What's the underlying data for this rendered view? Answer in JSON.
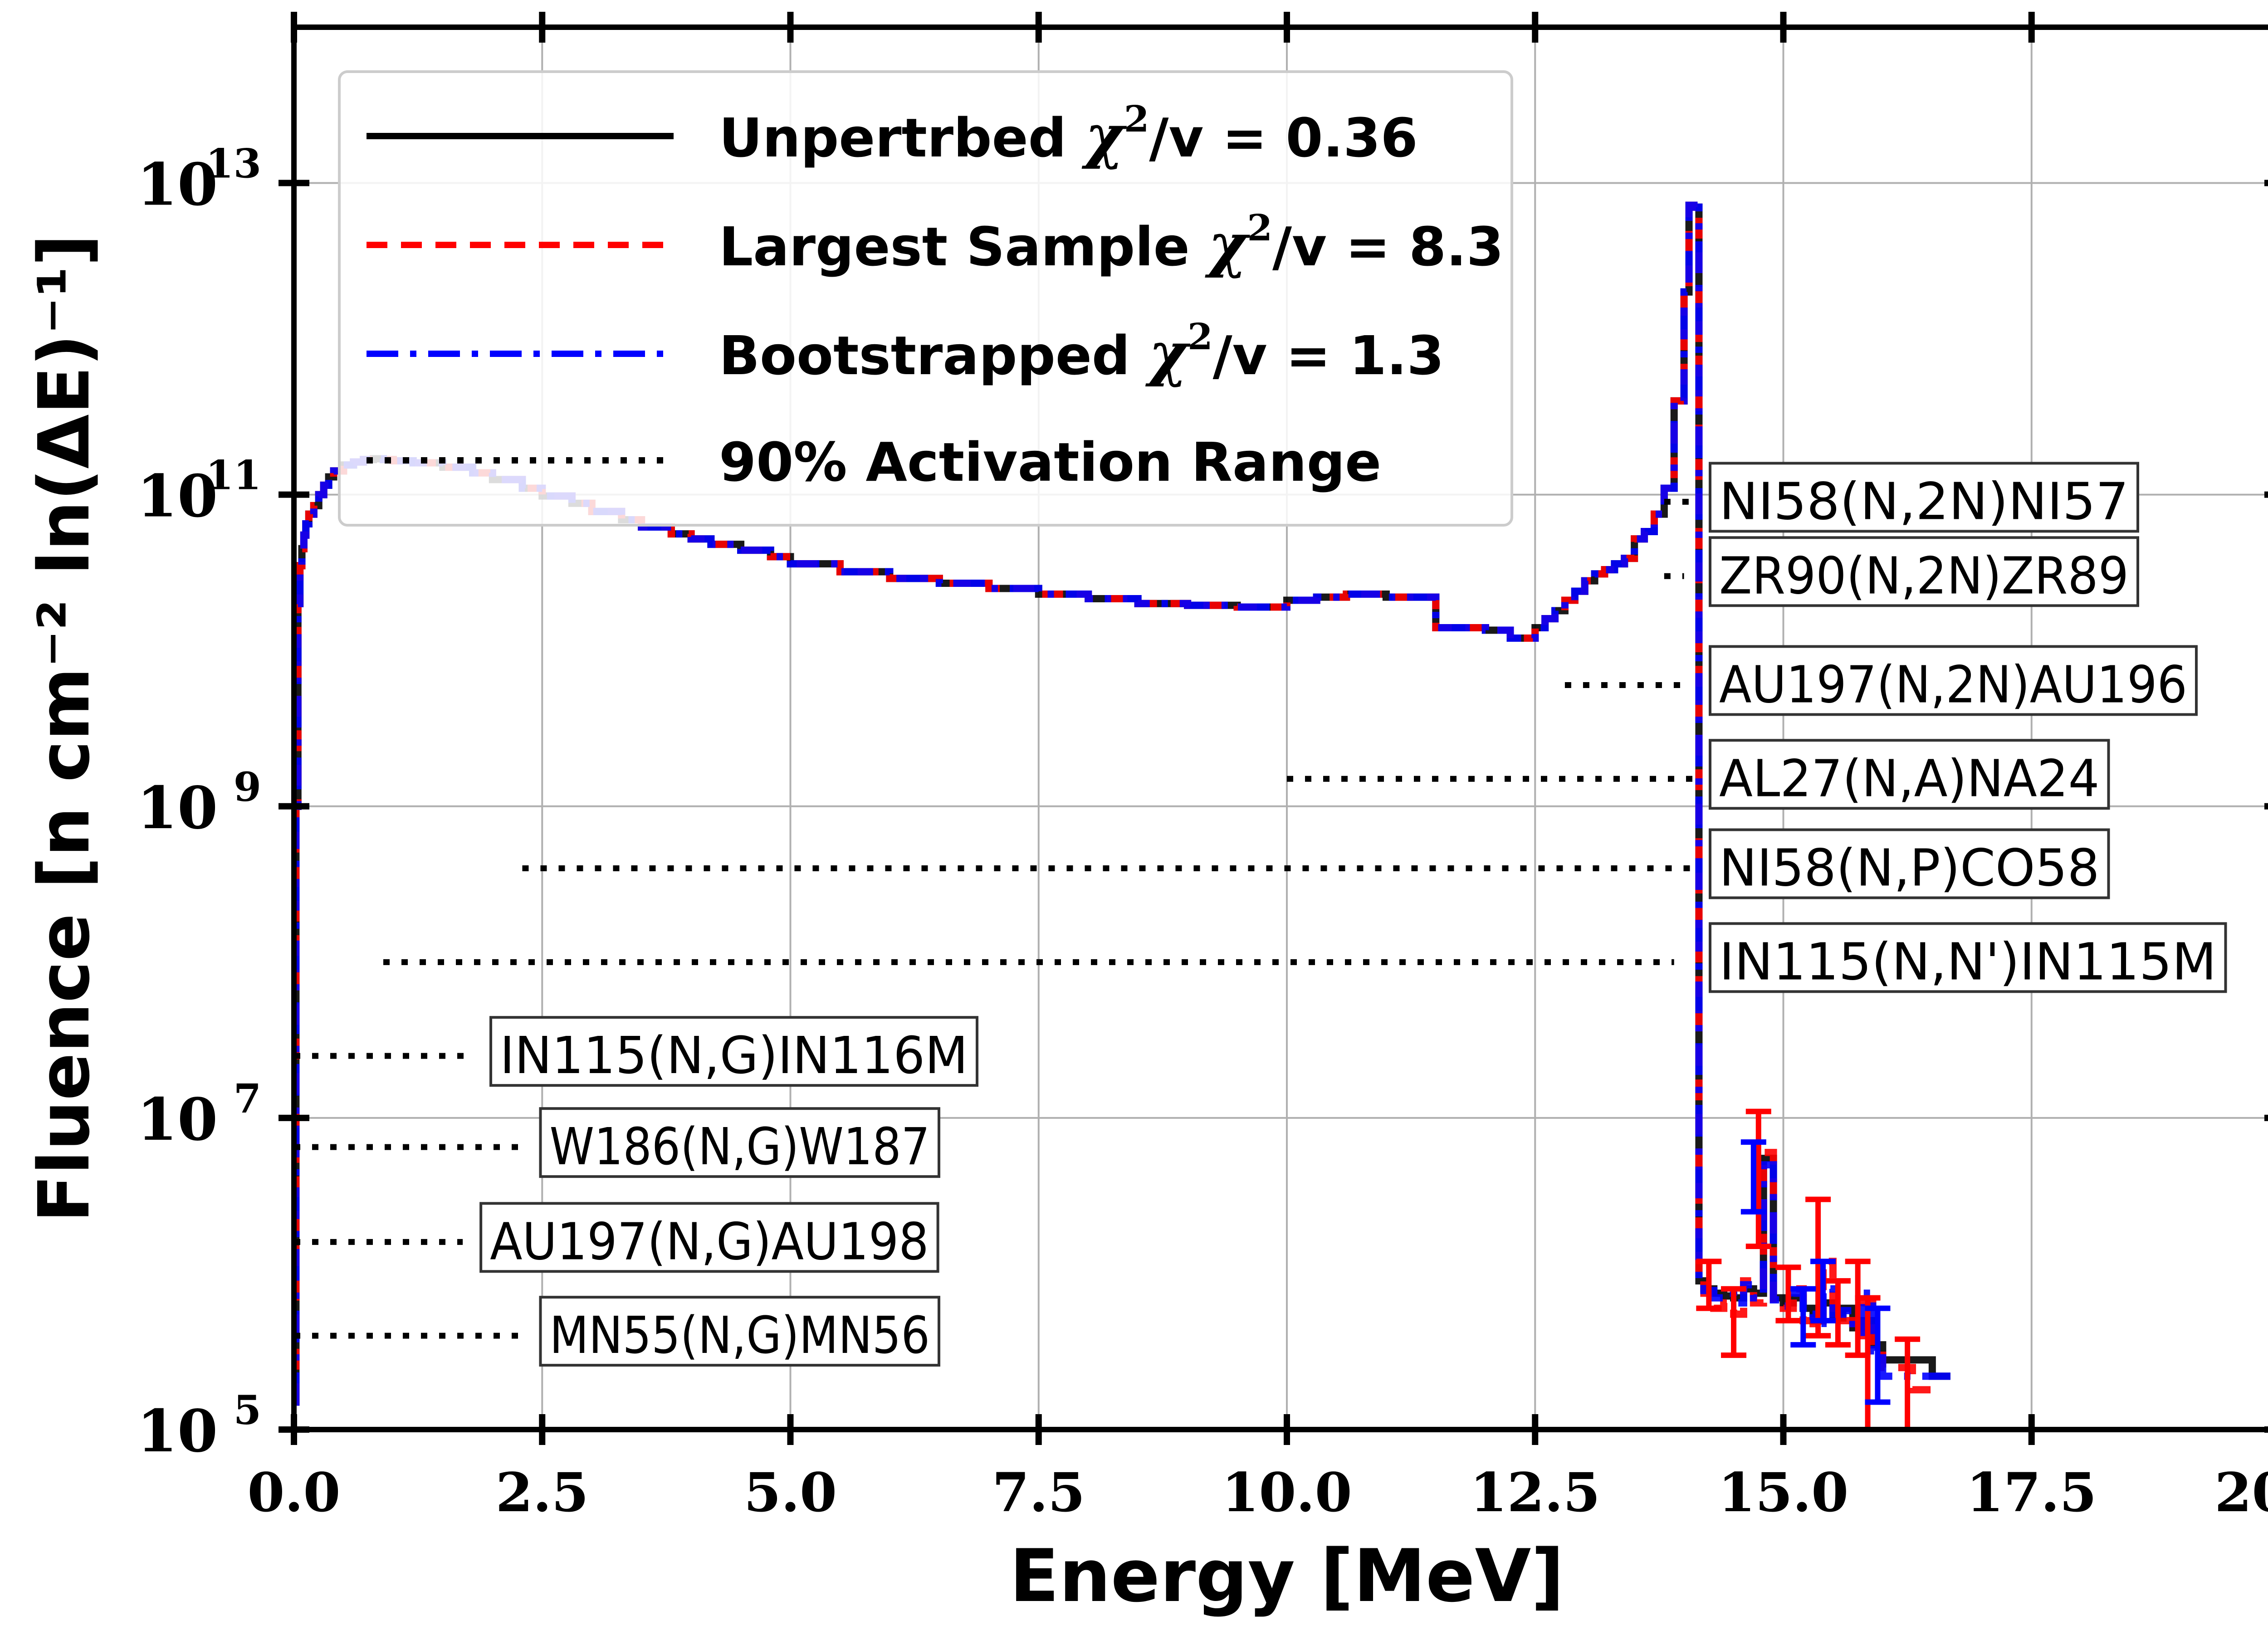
{
  "chart_data": {
    "type": "line",
    "xlabel": "Energy [MeV]",
    "ylabel": "Fluence [n cm⁻² ln(ΔE)⁻¹]",
    "xlim": [
      0.0,
      20.0
    ],
    "ylim_log10": [
      5,
      14
    ],
    "y_scale": "log",
    "grid": true,
    "legend_position": "top-left",
    "x_ticks": [
      "0.0",
      "2.5",
      "5.0",
      "7.5",
      "10.0",
      "12.5",
      "15.0",
      "17.5",
      "20.0"
    ],
    "x_tick_values": [
      0,
      2.5,
      5,
      7.5,
      10,
      12.5,
      15,
      17.5,
      20
    ],
    "y_ticks": [
      {
        "base": "10",
        "exp": "5",
        "value": 100000.0
      },
      {
        "base": "10",
        "exp": "7",
        "value": 10000000.0
      },
      {
        "base": "10",
        "exp": "9",
        "value": 1000000000.0
      },
      {
        "base": "10",
        "exp": "11",
        "value": 100000000000.0
      },
      {
        "base": "10",
        "exp": "13",
        "value": 10000000000000.0
      }
    ],
    "legend": [
      {
        "pre": "Unpertrbed ",
        "chi": "χ",
        "sq": "2",
        "post": "/v = 0.36",
        "color": "#000000",
        "style": "solid"
      },
      {
        "pre": "Largest Sample ",
        "chi": "χ",
        "sq": "2",
        "post": "/v = 8.3",
        "color": "#ff0000",
        "style": "dashed"
      },
      {
        "pre": "Bootstrapped ",
        "chi": "χ",
        "sq": "2",
        "post": "/v = 1.3",
        "color": "#0000ff",
        "style": "dashdot"
      },
      {
        "pre": "90% Activation Range",
        "chi": "",
        "sq": "",
        "post": "",
        "color": "#000000",
        "style": "dotted"
      }
    ],
    "series": [
      {
        "name": "Unpertrbed",
        "color": "#000000",
        "x": [
          0.0,
          0.02,
          0.04,
          0.06,
          0.08,
          0.1,
          0.12,
          0.15,
          0.2,
          0.25,
          0.3,
          0.35,
          0.4,
          0.5,
          0.6,
          0.7,
          0.8,
          0.9,
          1.0,
          1.2,
          1.5,
          1.8,
          2.0,
          2.3,
          2.5,
          2.8,
          3.0,
          3.3,
          3.5,
          3.8,
          4.0,
          4.2,
          4.5,
          4.8,
          5.0,
          5.5,
          6.0,
          6.5,
          7.0,
          7.5,
          8.0,
          8.5,
          9.0,
          9.5,
          10.0,
          10.3,
          10.6,
          11.0,
          11.5,
          12.0,
          12.25,
          12.5,
          12.6,
          12.7,
          12.8,
          12.9,
          13.0,
          13.1,
          13.2,
          13.3,
          13.4,
          13.5,
          13.6,
          13.7,
          13.8,
          13.9,
          14.0,
          14.05,
          14.1,
          14.15,
          14.2,
          14.3,
          14.4,
          14.5,
          14.6,
          14.7,
          14.8,
          14.9,
          15.0,
          15.1,
          15.2,
          15.3,
          15.4,
          15.5,
          15.6,
          15.7,
          15.8,
          15.9,
          16.0,
          16.5
        ],
        "y": [
          150000.0,
          1000000000.0,
          20000000000.0,
          35000000000.0,
          45000000000.0,
          55000000000.0,
          65000000000.0,
          75000000000.0,
          85000000000.0,
          100000000000.0,
          115000000000.0,
          130000000000.0,
          142000000000.0,
          155000000000.0,
          162000000000.0,
          168000000000.0,
          170000000000.0,
          168000000000.0,
          165000000000.0,
          160000000000.0,
          150000000000.0,
          138000000000.0,
          125000000000.0,
          110000000000.0,
          98000000000.0,
          88000000000.0,
          78000000000.0,
          69000000000.0,
          62000000000.0,
          56000000000.0,
          52000000000.0,
          48000000000.0,
          44000000000.0,
          40000000000.0,
          36000000000.0,
          32000000000.0,
          29000000000.0,
          27000000000.0,
          25000000000.0,
          23000000000.0,
          21500000000.0,
          20000000000.0,
          19500000000.0,
          19000000000.0,
          21000000000.0,
          22000000000.0,
          23000000000.0,
          22000000000.0,
          14000000000.0,
          13500000000.0,
          12000000000.0,
          14000000000.0,
          16000000000.0,
          18000000000.0,
          21000000000.0,
          24000000000.0,
          28000000000.0,
          31000000000.0,
          33000000000.0,
          36000000000.0,
          39000000000.0,
          52000000000.0,
          58000000000.0,
          75000000000.0,
          110000000000.0,
          400000000000.0,
          2000000000000.0,
          7200000000000.0,
          7000000000000.0,
          900000.0,
          800000.0,
          750000.0,
          720000.0,
          700000.0,
          800000.0,
          750000.0,
          5500000.0,
          700000.0,
          650000.0,
          700000.0,
          600000.0,
          500000.0,
          650000.0,
          520000.0,
          600000.0,
          450000.0,
          500000.0,
          350000.0,
          280000.0,
          220000.0
        ]
      },
      {
        "name": "Largest Sample",
        "color": "#ff0000",
        "x": [
          0.0,
          0.02,
          0.04,
          0.06,
          0.08,
          0.1,
          0.12,
          0.15,
          0.2,
          0.25,
          0.3,
          0.35,
          0.4,
          0.5,
          0.6,
          0.7,
          0.8,
          0.9,
          1.0,
          1.2,
          1.5,
          1.8,
          2.0,
          2.3,
          2.5,
          2.8,
          3.0,
          3.3,
          3.5,
          3.8,
          4.0,
          4.2,
          4.5,
          4.8,
          5.0,
          5.5,
          6.0,
          6.5,
          7.0,
          7.5,
          8.0,
          8.5,
          9.0,
          9.5,
          10.0,
          10.3,
          10.6,
          11.0,
          11.5,
          12.0,
          12.25,
          12.5,
          12.6,
          12.7,
          12.8,
          12.9,
          13.0,
          13.1,
          13.2,
          13.3,
          13.4,
          13.5,
          13.6,
          13.7,
          13.8,
          13.9,
          14.0,
          14.05,
          14.1,
          14.15,
          14.2,
          14.3,
          14.4,
          14.5,
          14.6,
          14.7,
          14.8,
          14.9,
          15.0,
          15.1,
          15.2,
          15.3,
          15.4,
          15.5,
          15.6,
          15.7,
          15.8,
          15.9,
          16.0,
          16.3
        ],
        "y": [
          150000.0,
          1000000000.0,
          20000000000.0,
          35000000000.0,
          45000000000.0,
          55000000000.0,
          65000000000.0,
          75000000000.0,
          85000000000.0,
          100000000000.0,
          115000000000.0,
          130000000000.0,
          142000000000.0,
          155000000000.0,
          162000000000.0,
          168000000000.0,
          170000000000.0,
          168000000000.0,
          165000000000.0,
          160000000000.0,
          150000000000.0,
          138000000000.0,
          125000000000.0,
          110000000000.0,
          98000000000.0,
          88000000000.0,
          78000000000.0,
          69000000000.0,
          62000000000.0,
          56000000000.0,
          52000000000.0,
          48000000000.0,
          44000000000.0,
          40000000000.0,
          36000000000.0,
          32000000000.0,
          29000000000.0,
          27000000000.0,
          25000000000.0,
          23000000000.0,
          21500000000.0,
          20000000000.0,
          19500000000.0,
          19000000000.0,
          21000000000.0,
          22000000000.0,
          23000000000.0,
          22000000000.0,
          14000000000.0,
          13500000000.0,
          12000000000.0,
          14000000000.0,
          16000000000.0,
          18000000000.0,
          21000000000.0,
          24000000000.0,
          28000000000.0,
          31000000000.0,
          33000000000.0,
          36000000000.0,
          39000000000.0,
          52000000000.0,
          58000000000.0,
          75000000000.0,
          110000000000.0,
          400000000000.0,
          2000000000000.0,
          7200000000000.0,
          7000000000000.0,
          1000000.0,
          750000.0,
          600000.0,
          650000.0,
          550000.0,
          900000.0,
          650000.0,
          6000000.0,
          650000.0,
          600000.0,
          800000.0,
          500000.0,
          450000.0,
          1200000.0,
          600000.0,
          500000.0,
          400000.0,
          650000.0,
          300000.0,
          250000.0,
          180000.0
        ]
      },
      {
        "name": "Bootstrapped",
        "color": "#0000ff",
        "x": [
          0.0,
          0.02,
          0.04,
          0.06,
          0.08,
          0.1,
          0.12,
          0.15,
          0.2,
          0.25,
          0.3,
          0.35,
          0.4,
          0.5,
          0.6,
          0.7,
          0.8,
          0.9,
          1.0,
          1.2,
          1.5,
          1.8,
          2.0,
          2.3,
          2.5,
          2.8,
          3.0,
          3.3,
          3.5,
          3.8,
          4.0,
          4.2,
          4.5,
          4.8,
          5.0,
          5.5,
          6.0,
          6.5,
          7.0,
          7.5,
          8.0,
          8.5,
          9.0,
          9.5,
          10.0,
          10.3,
          10.6,
          11.0,
          11.5,
          12.0,
          12.25,
          12.5,
          12.6,
          12.7,
          12.8,
          12.9,
          13.0,
          13.1,
          13.2,
          13.3,
          13.4,
          13.5,
          13.6,
          13.7,
          13.8,
          13.9,
          14.0,
          14.05,
          14.1,
          14.15,
          14.2,
          14.3,
          14.4,
          14.5,
          14.6,
          14.7,
          14.8,
          14.9,
          15.0,
          15.1,
          15.2,
          15.3,
          15.4,
          15.5,
          15.6,
          15.7,
          15.8,
          15.9,
          16.0,
          16.5
        ],
        "y": [
          150000.0,
          1000000000.0,
          20000000000.0,
          35000000000.0,
          45000000000.0,
          55000000000.0,
          65000000000.0,
          75000000000.0,
          85000000000.0,
          100000000000.0,
          115000000000.0,
          130000000000.0,
          142000000000.0,
          155000000000.0,
          162000000000.0,
          168000000000.0,
          170000000000.0,
          168000000000.0,
          165000000000.0,
          160000000000.0,
          150000000000.0,
          138000000000.0,
          125000000000.0,
          110000000000.0,
          98000000000.0,
          88000000000.0,
          78000000000.0,
          69000000000.0,
          62000000000.0,
          56000000000.0,
          52000000000.0,
          48000000000.0,
          44000000000.0,
          40000000000.0,
          36000000000.0,
          32000000000.0,
          29000000000.0,
          27000000000.0,
          25000000000.0,
          23000000000.0,
          21500000000.0,
          20000000000.0,
          19500000000.0,
          19000000000.0,
          21000000000.0,
          22000000000.0,
          23000000000.0,
          22000000000.0,
          14000000000.0,
          13500000000.0,
          12000000000.0,
          14000000000.0,
          16000000000.0,
          18000000000.0,
          21000000000.0,
          24000000000.0,
          28000000000.0,
          31000000000.0,
          33000000000.0,
          36000000000.0,
          39000000000.0,
          52000000000.0,
          58000000000.0,
          75000000000.0,
          110000000000.0,
          400000000000.0,
          2000000000000.0,
          7200000000000.0,
          7000000000000.0,
          850000.0,
          780000.0,
          700000.0,
          750000.0,
          650000.0,
          850000.0,
          700000.0,
          5000000.0,
          680000.0,
          620000.0,
          750000.0,
          550000.0,
          480000.0,
          800000.0,
          550000.0,
          580000.0,
          420000.0,
          750000.0,
          320000.0,
          220000.0,
          220000.0
        ]
      }
    ],
    "error_bars": [
      {
        "x": 14.25,
        "y": 900000.0,
        "lo": 600000.0,
        "hi": 1200000.0,
        "color": "#ff0000"
      },
      {
        "x": 14.5,
        "y": 550000.0,
        "lo": 300000.0,
        "hi": 800000.0,
        "color": "#ff0000"
      },
      {
        "x": 14.75,
        "y": 6000000.0,
        "lo": 1500000.0,
        "hi": 11000000.0,
        "color": "#ff0000"
      },
      {
        "x": 15.05,
        "y": 800000.0,
        "lo": 500000.0,
        "hi": 1100000.0,
        "color": "#ff0000"
      },
      {
        "x": 15.35,
        "y": 1200000.0,
        "lo": 400000.0,
        "hi": 3000000.0,
        "color": "#ff0000"
      },
      {
        "x": 15.55,
        "y": 600000.0,
        "lo": 350000.0,
        "hi": 900000.0,
        "color": "#ff0000"
      },
      {
        "x": 15.75,
        "y": 650000.0,
        "lo": 300000.0,
        "hi": 1200000.0,
        "color": "#ff0000"
      },
      {
        "x": 15.85,
        "y": 300000.0,
        "lo": 100000.0,
        "hi": 700000.0,
        "color": "#ff0000"
      },
      {
        "x": 16.25,
        "y": 180000.0,
        "lo": 100000.0,
        "hi": 380000.0,
        "color": "#ff0000"
      },
      {
        "x": 14.7,
        "y": 5000000.0,
        "lo": 2500000.0,
        "hi": 7000000.0,
        "color": "#0000ff"
      },
      {
        "x": 15.2,
        "y": 550000.0,
        "lo": 350000.0,
        "hi": 800000.0,
        "color": "#0000ff"
      },
      {
        "x": 15.4,
        "y": 800000.0,
        "lo": 500000.0,
        "hi": 1200000.0,
        "color": "#0000ff"
      },
      {
        "x": 15.95,
        "y": 320000.0,
        "lo": 150000.0,
        "hi": 600000.0,
        "color": "#0000ff"
      }
    ],
    "activation_ranges": [
      {
        "label": "NI58(N,2N)NI57",
        "x0": 13.8,
        "x1": 14.1,
        "y": 90000000000.0,
        "box": "right"
      },
      {
        "label": "ZR90(N,2N)ZR89",
        "x0": 13.8,
        "x1": 14.0,
        "y": 30000000000.0,
        "box": "right"
      },
      {
        "label": "AU197(N,2N)AU196",
        "x0": 12.8,
        "x1": 14.0,
        "y": 6000000000.0,
        "box": "right"
      },
      {
        "label": "AL27(N,A)NA24",
        "x0": 10.0,
        "x1": 14.1,
        "y": 1500000000.0,
        "box": "right"
      },
      {
        "label": "NI58(N,P)CO58",
        "x0": 2.3,
        "x1": 14.1,
        "y": 400000000.0,
        "box": "right"
      },
      {
        "label": "IN115(N,N')IN115M",
        "x0": 0.9,
        "x1": 13.9,
        "y": 100000000.0,
        "box": "right"
      },
      {
        "label": "IN115(N,G)IN116M",
        "x0": 0.0,
        "x1": 1.8,
        "y": 25000000.0,
        "box": "left"
      },
      {
        "label": "W186(N,G)W187",
        "x0": 0.0,
        "x1": 2.3,
        "y": 6500000.0,
        "box": "left"
      },
      {
        "label": "AU197(N,G)AU198",
        "x0": 0.0,
        "x1": 1.7,
        "y": 1600000.0,
        "box": "left"
      },
      {
        "label": "MN55(N,G)MN56",
        "x0": 0.0,
        "x1": 2.3,
        "y": 400000.0,
        "box": "left"
      }
    ]
  }
}
